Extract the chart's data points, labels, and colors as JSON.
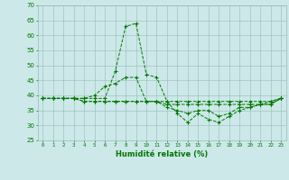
{
  "xlabel": "Humidité relative (%)",
  "bg_color": "#cce8e8",
  "line_color": "#007700",
  "xlim": [
    -0.5,
    23.5
  ],
  "ylim": [
    25,
    70
  ],
  "yticks": [
    25,
    30,
    35,
    40,
    45,
    50,
    55,
    60,
    65,
    70
  ],
  "xticks": [
    0,
    1,
    2,
    3,
    4,
    5,
    6,
    7,
    8,
    9,
    10,
    11,
    12,
    13,
    14,
    15,
    16,
    17,
    18,
    19,
    20,
    21,
    22,
    23
  ],
  "series": [
    {
      "x": [
        0,
        1,
        2,
        3,
        4,
        5,
        6,
        7,
        8,
        9,
        10,
        11,
        12,
        13,
        14,
        15,
        16,
        17,
        18,
        19,
        20,
        21,
        22,
        23
      ],
      "y": [
        39,
        39,
        39,
        39,
        39,
        39,
        39,
        48,
        63,
        64,
        47,
        46,
        38,
        34,
        31,
        34,
        32,
        31,
        33,
        35,
        36,
        37,
        38,
        39
      ]
    },
    {
      "x": [
        0,
        1,
        2,
        3,
        4,
        5,
        6,
        7,
        8,
        9,
        10,
        11,
        12,
        13,
        14,
        15,
        16,
        17,
        18,
        19,
        20,
        21,
        22,
        23
      ],
      "y": [
        39,
        39,
        39,
        39,
        38,
        38,
        38,
        38,
        38,
        38,
        38,
        38,
        37,
        37,
        37,
        37,
        37,
        37,
        37,
        37,
        37,
        37,
        37,
        39
      ]
    },
    {
      "x": [
        0,
        1,
        2,
        3,
        4,
        5,
        6,
        7,
        8,
        9,
        10,
        11,
        12,
        13,
        14,
        15,
        16,
        17,
        18,
        19,
        20,
        21,
        22,
        23
      ],
      "y": [
        39,
        39,
        39,
        39,
        39,
        40,
        43,
        44,
        46,
        46,
        38,
        38,
        38,
        38,
        38,
        38,
        38,
        38,
        38,
        38,
        38,
        38,
        38,
        39
      ]
    },
    {
      "x": [
        0,
        1,
        2,
        3,
        4,
        5,
        6,
        7,
        8,
        9,
        10,
        11,
        12,
        13,
        14,
        15,
        16,
        17,
        18,
        19,
        20,
        21,
        22,
        23
      ],
      "y": [
        39,
        39,
        39,
        39,
        38,
        38,
        38,
        38,
        38,
        38,
        38,
        38,
        36,
        35,
        34,
        35,
        35,
        33,
        34,
        36,
        36,
        37,
        37,
        39
      ]
    }
  ]
}
